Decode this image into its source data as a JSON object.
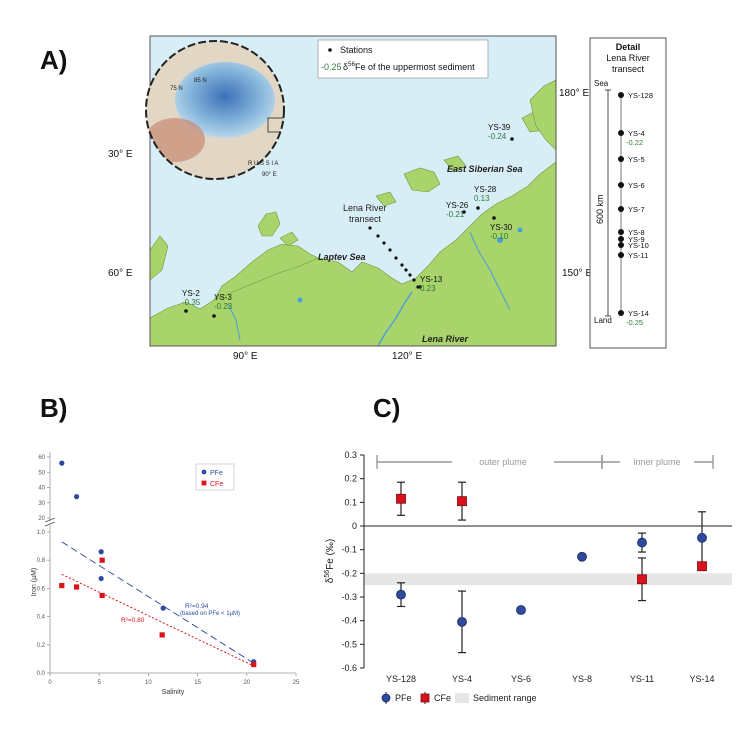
{
  "panels": {
    "a": "A)",
    "b": "B)",
    "c": "C)"
  },
  "map": {
    "legend": {
      "stations": "Stations",
      "value_example": "-0.25",
      "value_text": "δ56Fe of the uppermost sediment"
    },
    "longitude_labels": [
      "30° E",
      "60° E",
      "90° E",
      "120° E",
      "150° E",
      "180° E"
    ],
    "sea_labels": [
      "East Siberian Sea",
      "Laptev Sea",
      "Lena River"
    ],
    "transect_label": [
      "Lena River",
      "transect"
    ],
    "inset_labels": [
      "75 N",
      "85 N",
      "R U S S I A",
      "90° E"
    ],
    "stations": [
      {
        "name": "YS-39",
        "value": "-0.24"
      },
      {
        "name": "YS-28",
        "value": "0.13"
      },
      {
        "name": "YS-26",
        "value": "-0.21"
      },
      {
        "name": "YS-30",
        "value": "-0.10"
      },
      {
        "name": "YS-13",
        "value": "0.23"
      },
      {
        "name": "YS-2",
        "value": "-0.35"
      },
      {
        "name": "YS-3",
        "value": "-0.23"
      }
    ]
  },
  "detail": {
    "title": "Detail",
    "subtitle": [
      "Lena River",
      "transect"
    ],
    "top_label": "Sea",
    "bottom_label": "Land",
    "distance_label": "600 km",
    "stations": [
      {
        "name": "YS-128",
        "value": ""
      },
      {
        "name": "YS-4",
        "value": "-0.22"
      },
      {
        "name": "YS-5",
        "value": ""
      },
      {
        "name": "YS-6",
        "value": ""
      },
      {
        "name": "YS-7",
        "value": ""
      },
      {
        "name": "YS-8",
        "value": ""
      },
      {
        "name": "YS-9",
        "value": ""
      },
      {
        "name": "YS-10",
        "value": ""
      },
      {
        "name": "YS-11",
        "value": ""
      },
      {
        "name": "YS-14",
        "value": "-0.25"
      }
    ]
  },
  "colors": {
    "pfe": "#2e4a9e",
    "cfe": "#d9121b",
    "sea": "#d8eef6",
    "land": "#a9d36b",
    "value_text": "#2f7a3a",
    "sediment_band": "#e6e6e6"
  },
  "chart_data": [
    {
      "type": "scatter",
      "xlabel": "Salinity",
      "ylabel": "Iron (µM)",
      "xlim": [
        0,
        25
      ],
      "x_ticks": [
        "0",
        "5",
        "10",
        "15",
        "20",
        "25"
      ],
      "y_ticks_lower": [
        "0.0",
        "0.2",
        "0.4",
        "0.6",
        "0.8",
        "1.0"
      ],
      "y_ticks_upper": [
        "20",
        "30",
        "40",
        "50",
        "60"
      ],
      "ylim_lower": [
        0,
        1.0
      ],
      "ylim_upper": [
        20,
        60
      ],
      "legend": [
        "PFe",
        "CFe"
      ],
      "legend_position": "top-right",
      "series": [
        {
          "name": "PFe",
          "x": [
            1.2,
            2.7,
            5.2,
            5.2,
            11.5,
            20.7
          ],
          "y": [
            56,
            34,
            0.86,
            0.67,
            0.46,
            0.08
          ]
        },
        {
          "name": "CFe",
          "x": [
            1.2,
            2.7,
            5.3,
            5.3,
            11.4,
            20.7
          ],
          "y": [
            0.62,
            0.61,
            0.8,
            0.55,
            0.27,
            0.06
          ]
        }
      ],
      "fits": [
        {
          "series": "PFe",
          "label": "R²=0.94",
          "note": "(based on PFe < 1µM)",
          "x": [
            1.2,
            20.7
          ],
          "y": [
            0.93,
            0.07
          ]
        },
        {
          "series": "CFe",
          "label": "R²=0.80",
          "x": [
            1.2,
            20.7
          ],
          "y": [
            0.7,
            0.05
          ]
        }
      ]
    },
    {
      "type": "scatter",
      "ylabel": "δ56Fe (‰)",
      "ylim": [
        -0.6,
        0.3
      ],
      "y_ticks": [
        "0.3",
        "0.2",
        "0.1",
        "0",
        "-0.1",
        "-0.2",
        "-0.3",
        "-0.4",
        "-0.5",
        "-0.6"
      ],
      "categories": [
        "YS-128",
        "YS-4",
        "YS-6",
        "YS-8",
        "YS-11",
        "YS-14"
      ],
      "region_labels": [
        "outer plume",
        "inner plume"
      ],
      "legend": [
        "PFe",
        "CFe",
        "Sediment range"
      ],
      "legend_position": "bottom",
      "sediment_range": [
        -0.25,
        -0.2
      ],
      "series": [
        {
          "name": "PFe",
          "values": [
            -0.29,
            -0.405,
            -0.355,
            -0.13,
            -0.07,
            -0.05
          ],
          "err": [
            0.05,
            0.13,
            0.01,
            0.005,
            0.04,
            0.11
          ]
        },
        {
          "name": "CFe",
          "values": [
            0.115,
            0.105,
            null,
            null,
            -0.225,
            -0.17
          ],
          "err": [
            0.07,
            0.08,
            null,
            null,
            0.09,
            0.0
          ]
        }
      ]
    }
  ]
}
